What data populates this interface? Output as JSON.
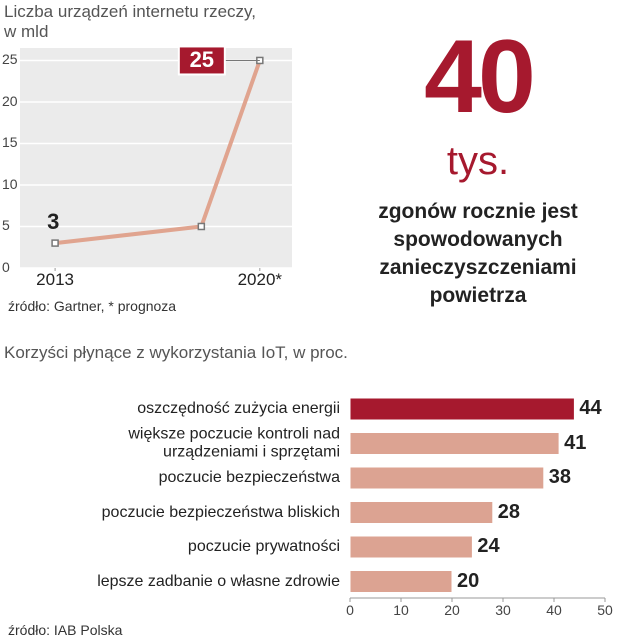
{
  "chart_data": [
    {
      "type": "line",
      "title": "Liczba urządzeń internetu rzeczy,\nw mld",
      "x": [
        2013,
        2018,
        2020
      ],
      "series": [
        {
          "name": "urządzenia",
          "color": "#e0a48f",
          "values": [
            3,
            5,
            25
          ]
        }
      ],
      "xlim": [
        2011.8,
        2021.1
      ],
      "xticks": [
        {
          "value": 2013,
          "label": "2013"
        },
        {
          "value": 2020,
          "label": "2020*"
        }
      ],
      "ylim": [
        0,
        26.5
      ],
      "yticks": [
        0,
        5,
        10,
        15,
        20,
        25
      ],
      "grid": true,
      "highlight_color": "#a6192e",
      "source": "źródło: Gartner, * prognoza"
    },
    {
      "type": "hbar",
      "title": "Korzyści płynące z wykorzystania IoT, w proc.",
      "categories": [
        "oszczędność zużycia energii",
        "większe poczucie kontroli nad\nurządzeniami i sprzętami",
        "poczucie bezpieczeństwa",
        "poczucie bezpieczeństwa bliskich",
        "poczucie prywatności",
        "lepsze zadbanie o własne zdrowie"
      ],
      "values": [
        44,
        41,
        38,
        28,
        24,
        20
      ],
      "colors": [
        "#a6192e",
        "#dca392",
        "#dca392",
        "#dca392",
        "#dca392",
        "#dca392"
      ],
      "xlim": [
        0,
        50
      ],
      "xticks": [
        0,
        10,
        20,
        30,
        40,
        50
      ],
      "source": "źródło: IAB Polska"
    }
  ],
  "callout": {
    "number": "40",
    "unit": "tys.",
    "text": "zgonów rocznie jest\nspowodowanych\nzanieczyszczeniami\npowietrza"
  }
}
